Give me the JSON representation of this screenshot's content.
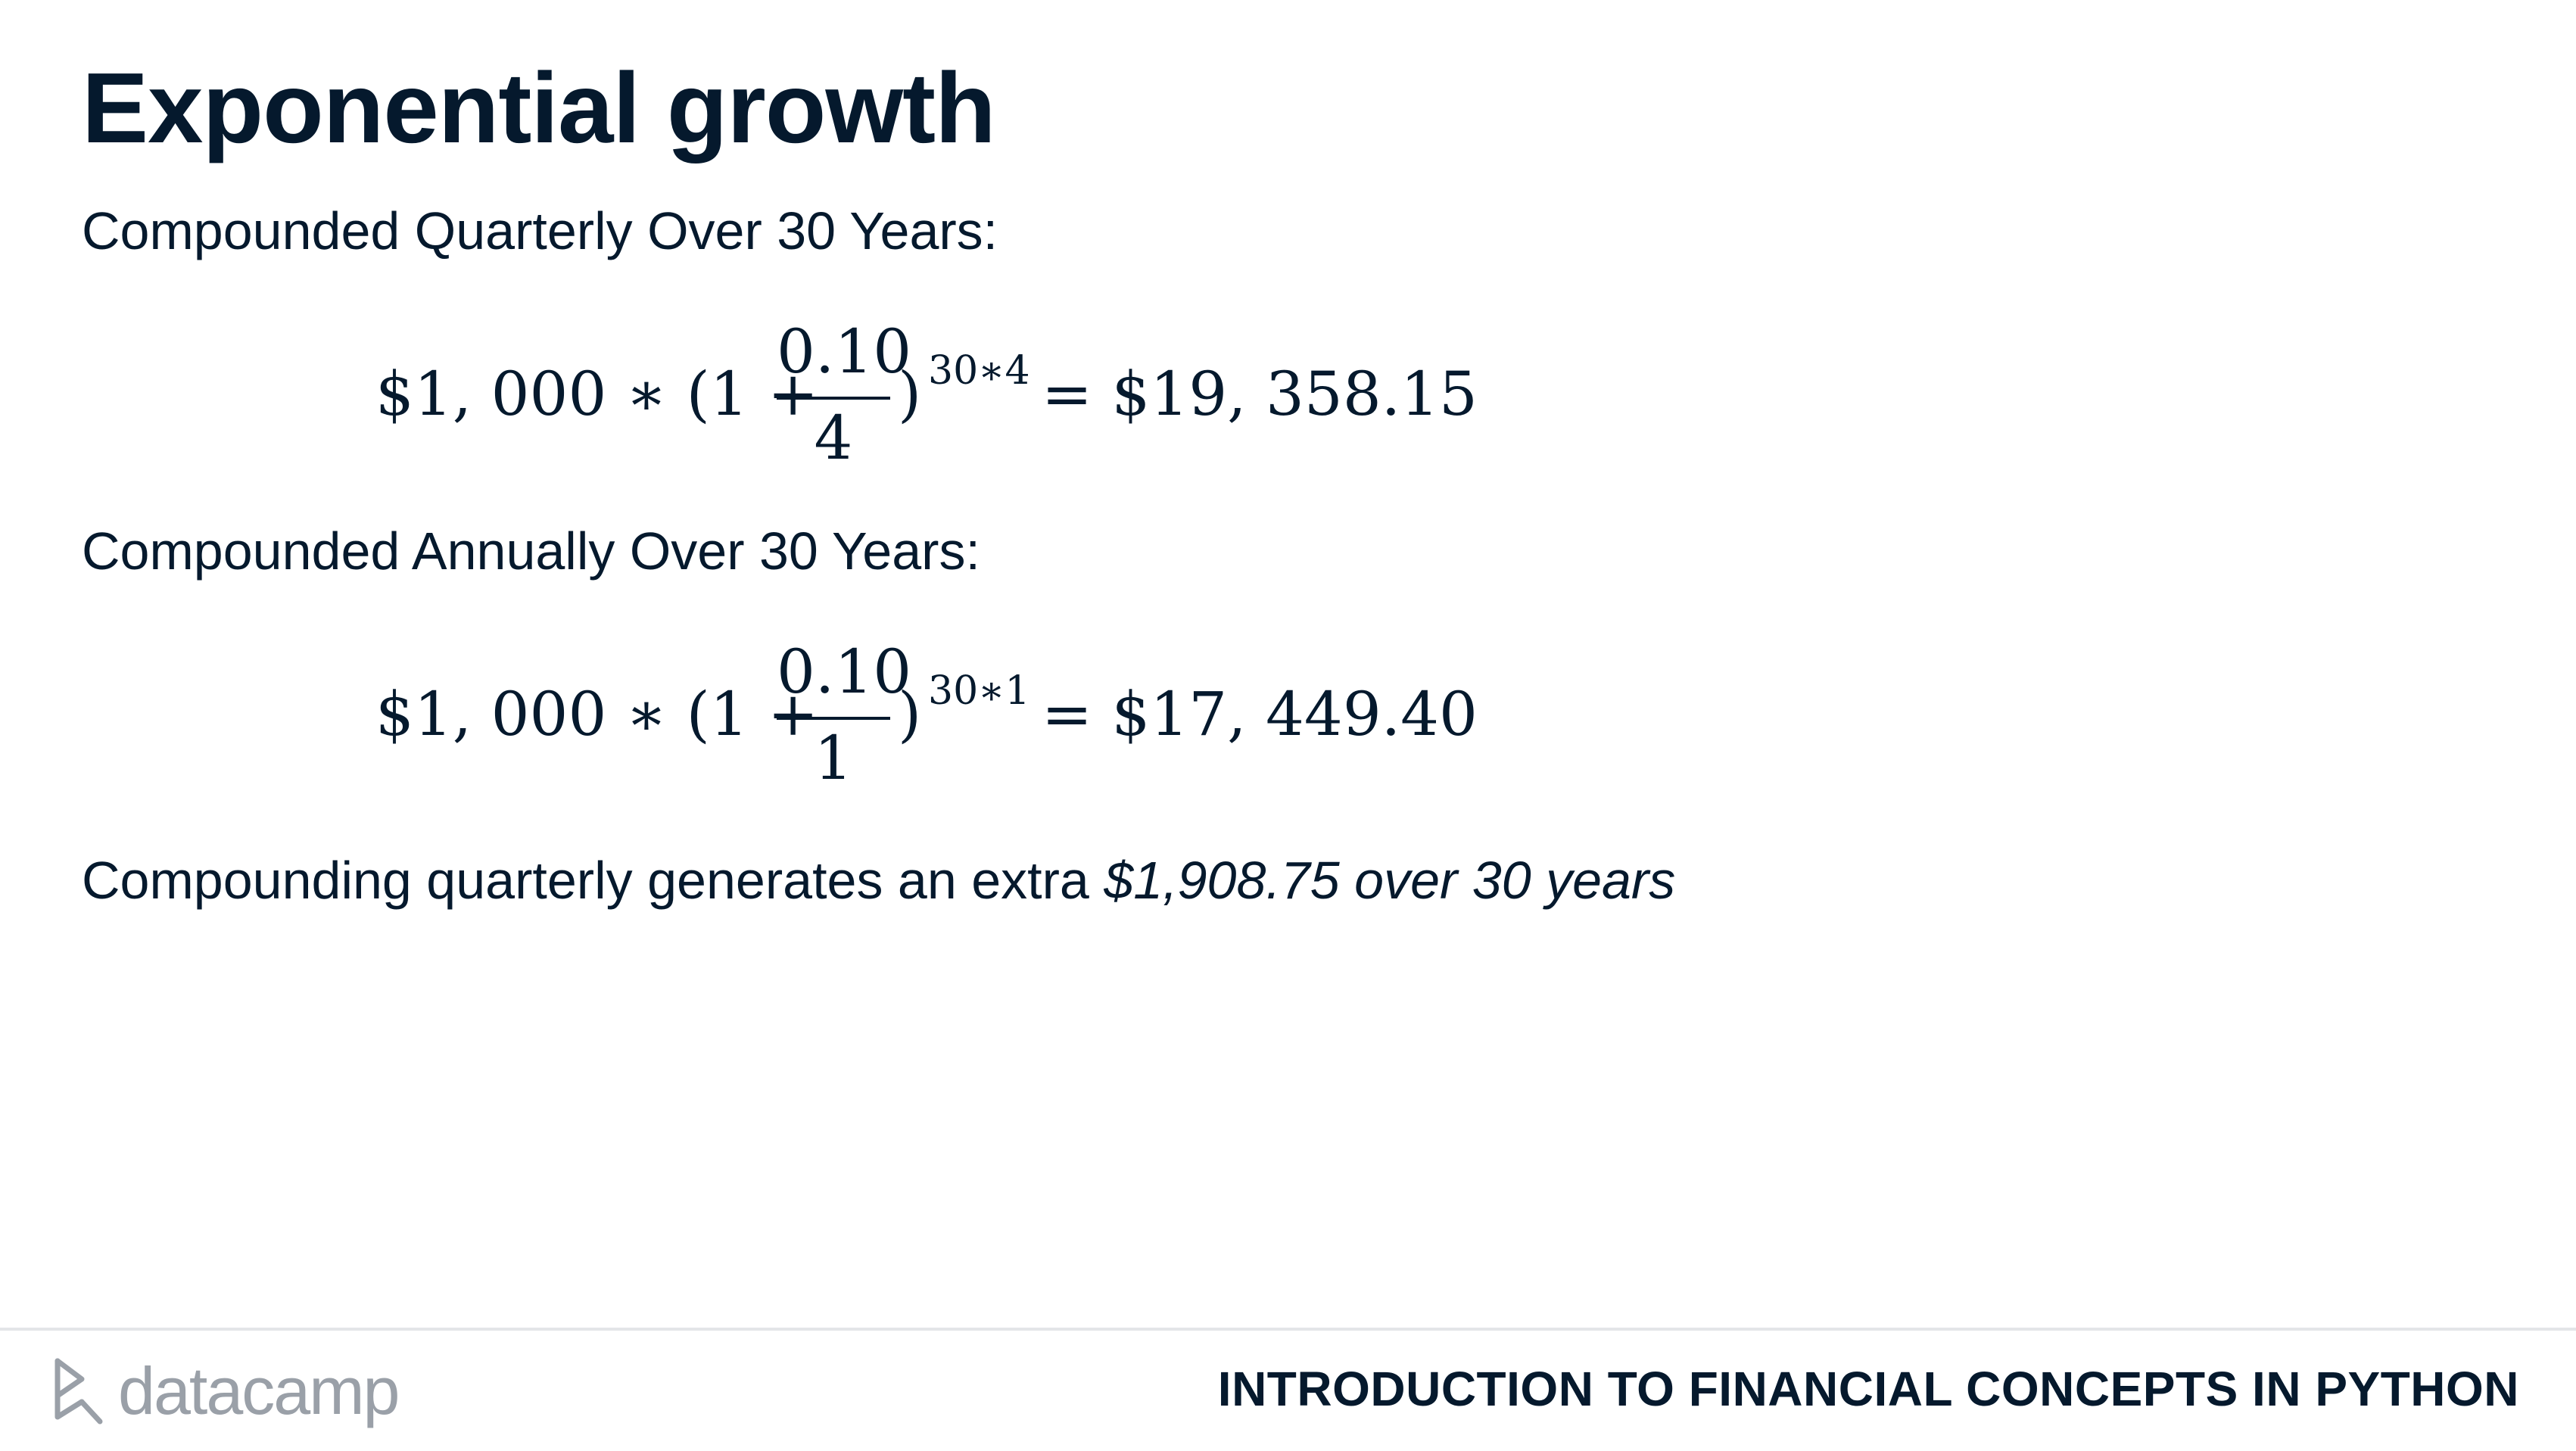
{
  "slide": {
    "title": "Exponential growth",
    "section_quarterly": {
      "label": "Compounded Quarterly Over 30 Years:",
      "formula": {
        "lhs": "$1, 000 ∗ (1 +",
        "numerator": "0.10",
        "denominator": "4",
        "rparen": ")",
        "exponent": "30∗4",
        "rhs": "= $19, 358.15"
      }
    },
    "section_annual": {
      "label": "Compounded Annually Over 30 Years:",
      "formula": {
        "lhs": "$1, 000 ∗ (1 +",
        "numerator": "0.10",
        "denominator": "1",
        "rparen": ")",
        "exponent": "30∗1",
        "rhs": "= $17, 449.40"
      }
    },
    "conclusion": {
      "prefix": "Compounding quarterly generates an extra ",
      "emphasis": "$1,908.75 over 30 years"
    }
  },
  "footer": {
    "logo_text": "datacamp",
    "course_title": "INTRODUCTION TO FINANCIAL CONCEPTS IN PYTHON"
  },
  "colors": {
    "text": "#05192d",
    "logo": "#9aa0a8",
    "footer_rule": "#e3e5e8"
  }
}
